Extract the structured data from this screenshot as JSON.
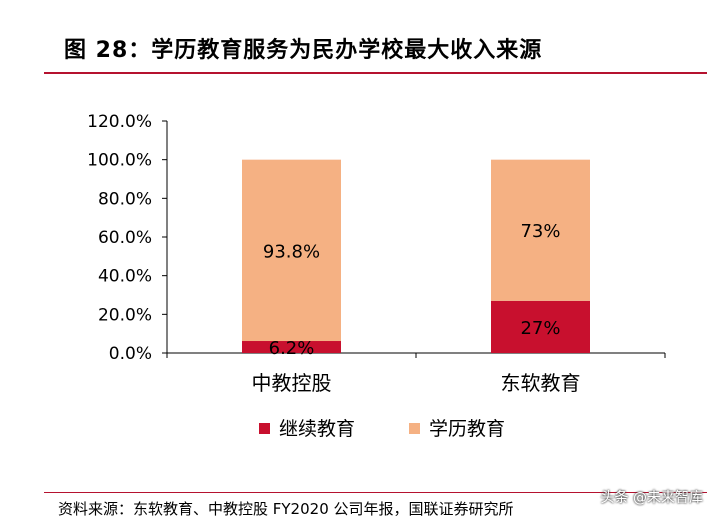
{
  "figure": {
    "title": "图 28：学历教育服务为民办学校最大收入来源",
    "source": "资料来源：东软教育、中教控股 FY2020 公司年报，国联证券研究所",
    "watermark": "头条 @未来智库"
  },
  "chart_data": {
    "type": "bar",
    "stacked": true,
    "categories": [
      "中教控股",
      "东软教育"
    ],
    "series": [
      {
        "name": "继续教育",
        "values": [
          6.2,
          27
        ],
        "labels": [
          "6.2%",
          "27%"
        ],
        "color": "#c8102e"
      },
      {
        "name": "学历教育",
        "values": [
          93.8,
          73
        ],
        "labels": [
          "93.8%",
          "73%"
        ],
        "color": "#f5b183"
      }
    ],
    "ylim": [
      0,
      120
    ],
    "yticks": [
      "0.0%",
      "20.0%",
      "40.0%",
      "60.0%",
      "80.0%",
      "100.0%",
      "120.0%"
    ],
    "ytick_values": [
      0,
      20,
      40,
      60,
      80,
      100,
      120
    ],
    "grid": false,
    "legend": "bottom"
  }
}
